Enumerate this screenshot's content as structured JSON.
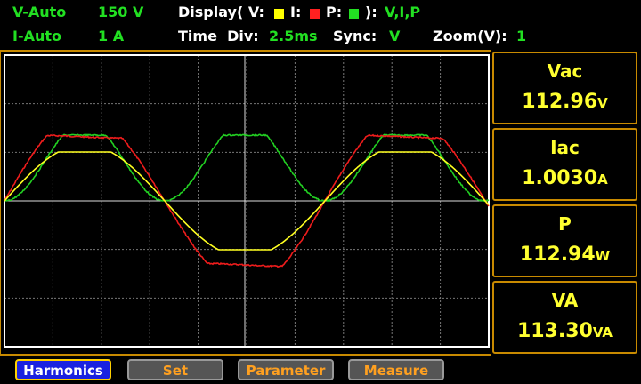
{
  "header": {
    "row1": {
      "v_mode": "V-Auto",
      "v_range": "150 V",
      "display_label": "Display( V:",
      "i_label": "I:",
      "p_label": "P:",
      "close_label": "):",
      "display_value": "V,I,P"
    },
    "row2": {
      "i_mode": "I-Auto",
      "i_range": "1 A",
      "time_label": "Time  Div:",
      "time_value": "2.5ms",
      "sync_label": "Sync:",
      "sync_value": "V",
      "zoom_label": "Zoom(V):",
      "zoom_value": "1"
    }
  },
  "readings": [
    {
      "label": "Vac",
      "value": "112.96",
      "unit": "V"
    },
    {
      "label": "Iac",
      "value": "1.0030",
      "unit": "A"
    },
    {
      "label": "P",
      "value": "112.94",
      "unit": "W"
    },
    {
      "label": "VA",
      "value": "113.30",
      "unit": "VA"
    }
  ],
  "buttons": [
    "Harmonics",
    "Set",
    "Parameter",
    "Measure"
  ]
}
